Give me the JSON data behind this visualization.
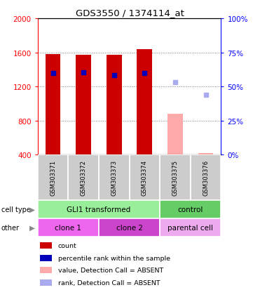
{
  "title": "GDS3550 / 1374114_at",
  "samples": [
    "GSM303371",
    "GSM303372",
    "GSM303373",
    "GSM303374",
    "GSM303375",
    "GSM303376"
  ],
  "bar_values": [
    1580,
    1568,
    1575,
    1640,
    878,
    418
  ],
  "bar_colors": [
    "#cc0000",
    "#cc0000",
    "#cc0000",
    "#cc0000",
    "#ffaaaa",
    "#ffaaaa"
  ],
  "rank_values": [
    1355,
    1365,
    1335,
    1355,
    1255,
    1105
  ],
  "rank_colors": [
    "#0000bb",
    "#0000bb",
    "#0000bb",
    "#0000bb",
    "#aaaaee",
    "#aaaaee"
  ],
  "ylim_left": [
    400,
    2000
  ],
  "yticks_left": [
    400,
    800,
    1200,
    1600,
    2000
  ],
  "yticks_right": [
    0,
    25,
    50,
    75,
    100
  ],
  "yticklabels_right": [
    "0%",
    "25%",
    "50%",
    "75%",
    "100%"
  ],
  "bar_bottom": 400,
  "cell_type_labels": [
    {
      "text": "GLI1 transformed",
      "xstart": 0,
      "xend": 4,
      "color": "#99ee99"
    },
    {
      "text": "control",
      "xstart": 4,
      "xend": 6,
      "color": "#66cc66"
    }
  ],
  "other_labels": [
    {
      "text": "clone 1",
      "xstart": 0,
      "xend": 2,
      "color": "#ee66ee"
    },
    {
      "text": "clone 2",
      "xstart": 2,
      "xend": 4,
      "color": "#cc44cc"
    },
    {
      "text": "parental cell",
      "xstart": 4,
      "xend": 6,
      "color": "#eeaaee"
    }
  ],
  "legend_items": [
    {
      "color": "#cc0000",
      "label": "count"
    },
    {
      "color": "#0000bb",
      "label": "percentile rank within the sample"
    },
    {
      "color": "#ffaaaa",
      "label": "value, Detection Call = ABSENT"
    },
    {
      "color": "#aaaaee",
      "label": "rank, Detection Call = ABSENT"
    }
  ],
  "sample_bg_color": "#cccccc",
  "grid_color": "#777777"
}
